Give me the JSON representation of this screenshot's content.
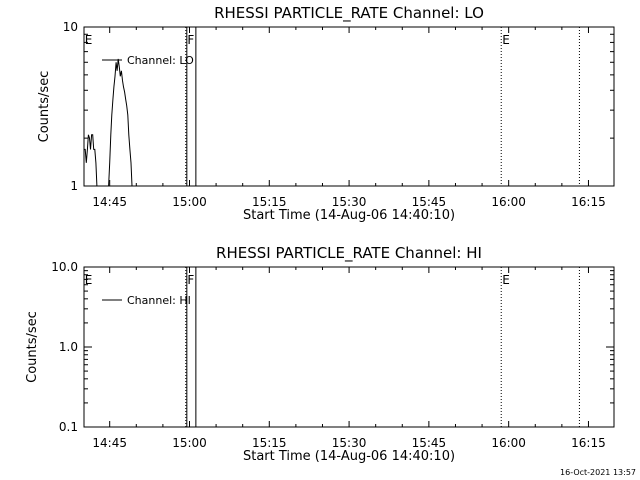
{
  "footer": {
    "timestamp": "16-Oct-2021 13:57"
  },
  "chart_data": [
    {
      "type": "line",
      "title": "RHESSI PARTICLE_RATE Channel: LO",
      "xlabel": "Start Time (14-Aug-06 14:40:10)",
      "ylabel": "Counts/sec",
      "yscale": "log",
      "ylim": [
        1,
        10
      ],
      "xlim": [
        0.17,
        99.8
      ],
      "x_unit": "minutes after 14:40:00",
      "xticks": [
        {
          "value": 5,
          "label": "14:45"
        },
        {
          "value": 20,
          "label": "15:00"
        },
        {
          "value": 35,
          "label": "15:15"
        },
        {
          "value": 50,
          "label": "15:30"
        },
        {
          "value": 65,
          "label": "15:45"
        },
        {
          "value": 80,
          "label": "16:00"
        },
        {
          "value": 95,
          "label": "16:15"
        }
      ],
      "yticks": [
        {
          "value": 1,
          "label": "1"
        },
        {
          "value": 10,
          "label": "10"
        }
      ],
      "legend": {
        "position": "top-left",
        "entries": [
          "Channel: LO"
        ]
      },
      "vlines": [
        {
          "x": 19.3,
          "style": "dotted"
        },
        {
          "x": 19.5,
          "style": "solid"
        },
        {
          "x": 21.2,
          "style": "solid"
        },
        {
          "x": 78.6,
          "style": "dotted"
        },
        {
          "x": 93.3,
          "style": "dotted"
        }
      ],
      "markers": [
        {
          "x": 0.3,
          "label": "E"
        },
        {
          "x": 19.6,
          "label": "F"
        },
        {
          "x": 78.8,
          "label": "E"
        }
      ],
      "series": [
        {
          "name": "Channel: LO",
          "x": [
            0.2,
            0.4,
            0.6,
            0.8,
            1.0,
            1.2,
            1.4,
            1.6,
            1.8,
            2.0,
            2.2,
            2.4,
            2.6,
            2.8,
            3.0,
            3.2,
            4.6,
            4.8,
            5.0,
            5.2,
            5.4,
            5.6,
            5.8,
            6.0,
            6.2,
            6.4,
            6.6,
            6.8,
            7.0,
            7.2,
            7.4,
            7.6,
            7.8,
            8.0,
            8.2,
            8.4,
            8.6,
            8.8,
            9.0,
            9.2
          ],
          "y": [
            1.7,
            1.7,
            1.4,
            1.7,
            2.1,
            2.0,
            1.7,
            2.1,
            2.1,
            1.7,
            1.7,
            1.4,
            1.0,
            1.0,
            1.0,
            1.0,
            1.0,
            1.0,
            1.4,
            2.1,
            2.8,
            3.5,
            4.2,
            4.9,
            6.0,
            5.3,
            6.3,
            5.6,
            4.9,
            5.3,
            4.6,
            4.2,
            3.9,
            3.5,
            3.2,
            2.8,
            2.1,
            1.7,
            1.4,
            1.0
          ]
        }
      ]
    },
    {
      "type": "line",
      "title": "RHESSI PARTICLE_RATE Channel: HI",
      "xlabel": "Start Time (14-Aug-06 14:40:10)",
      "ylabel": "Counts/sec",
      "yscale": "log",
      "ylim": [
        0.1,
        10
      ],
      "xlim": [
        0.17,
        99.8
      ],
      "x_unit": "minutes after 14:40:00",
      "xticks": [
        {
          "value": 5,
          "label": "14:45"
        },
        {
          "value": 20,
          "label": "15:00"
        },
        {
          "value": 35,
          "label": "15:15"
        },
        {
          "value": 50,
          "label": "15:30"
        },
        {
          "value": 65,
          "label": "15:45"
        },
        {
          "value": 80,
          "label": "16:00"
        },
        {
          "value": 95,
          "label": "16:15"
        }
      ],
      "yticks": [
        {
          "value": 0.1,
          "label": "0.1"
        },
        {
          "value": 1,
          "label": "1.0"
        },
        {
          "value": 10,
          "label": "10.0"
        }
      ],
      "legend": {
        "position": "top-left",
        "entries": [
          "Channel: HI"
        ]
      },
      "vlines": [
        {
          "x": 19.3,
          "style": "dotted"
        },
        {
          "x": 19.5,
          "style": "solid"
        },
        {
          "x": 21.2,
          "style": "solid"
        },
        {
          "x": 78.6,
          "style": "dotted"
        },
        {
          "x": 93.3,
          "style": "dotted"
        }
      ],
      "markers": [
        {
          "x": 0.3,
          "label": "E"
        },
        {
          "x": 19.6,
          "label": "F"
        },
        {
          "x": 78.8,
          "label": "E"
        }
      ],
      "series": [
        {
          "name": "Channel: HI",
          "x": [],
          "y": []
        }
      ]
    }
  ]
}
